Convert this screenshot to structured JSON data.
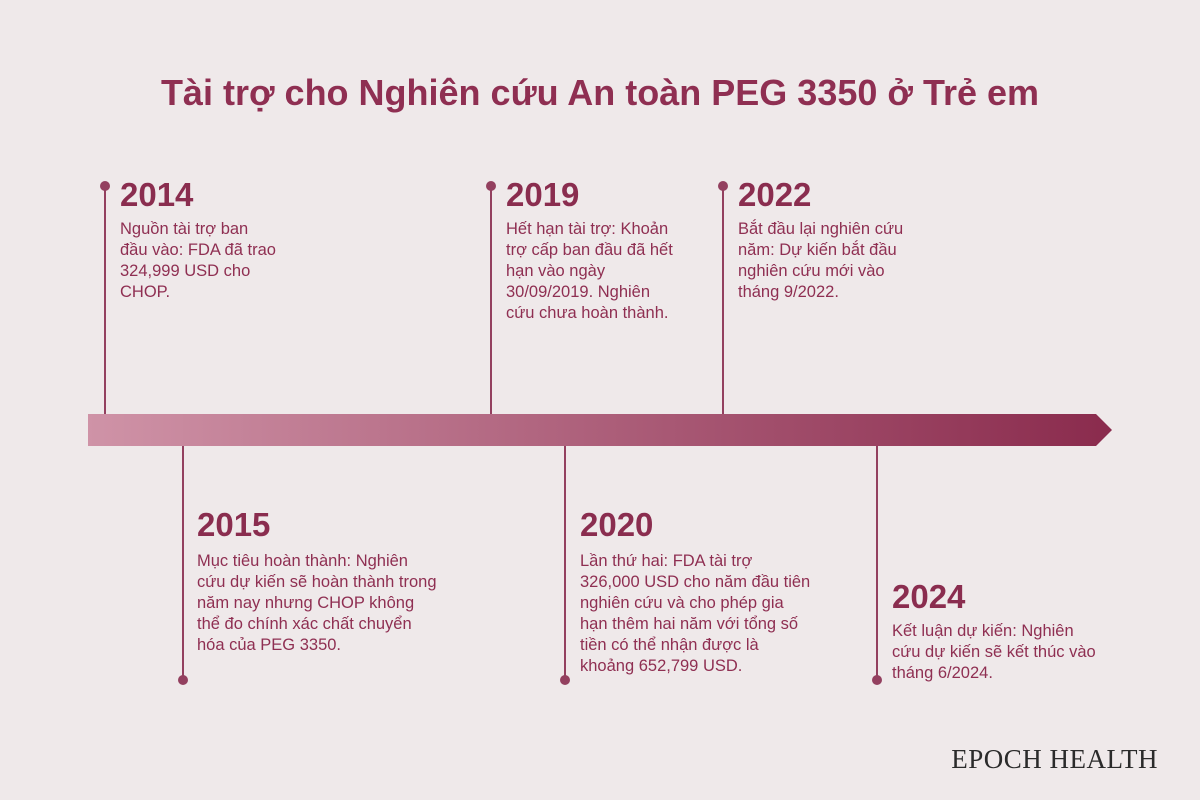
{
  "title": "Tài trợ cho Nghiên cứu An toàn PEG 3350 ở Trẻ em",
  "brand": "EPOCH HEALTH",
  "colors": {
    "background": "#efe9ea",
    "accent": "#8f2f52",
    "axis_start": "#cf93a7",
    "axis_end": "#8a2b4d"
  },
  "events": [
    {
      "year": "2014",
      "description": "Nguồn tài trợ ban đầu vào: FDA đã trao 324,999 USD cho CHOP."
    },
    {
      "year": "2015",
      "description": "Mục tiêu hoàn thành: Nghiên cứu dự kiến sẽ hoàn thành trong năm nay nhưng CHOP không thể đo chính xác chất chuyển hóa của PEG 3350."
    },
    {
      "year": "2019",
      "description": "Hết hạn tài trợ: Khoản trợ cấp ban đầu đã hết hạn vào ngày 30/09/2019. Nghiên cứu chưa hoàn thành."
    },
    {
      "year": "2020",
      "description": "Lần thứ hai: FDA tài trợ 326,000 USD cho năm đầu tiên nghiên cứu và cho phép gia hạn thêm hai năm với tổng số tiền có thể nhận được là khoảng 652,799 USD."
    },
    {
      "year": "2022",
      "description": "Bắt đầu lại nghiên cứu năm: Dự kiến bắt đầu nghiên cứu mới vào tháng 9/2022."
    },
    {
      "year": "2024",
      "description": "Kết luận dự kiến: Nghiên cứu dự kiến sẽ kết thúc vào tháng 6/2024."
    }
  ]
}
